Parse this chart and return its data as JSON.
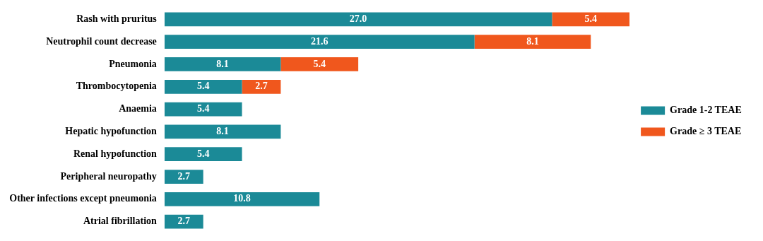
{
  "chart_data": {
    "type": "bar",
    "orientation": "horizontal",
    "stacked": true,
    "legend": "right",
    "categories": [
      "Rash with pruritus",
      "Neutrophil count decrease",
      "Pneumonia",
      "Thrombocytopenia",
      "Anaemia",
      "Hepatic hypofunction",
      "Renal hypofunction",
      "Peripheral neuropathy",
      "Other infections except pneumonia",
      "Atrial fibrillation"
    ],
    "series": [
      {
        "name": "Grade 1-2 TEAE",
        "color": "#1b8a97",
        "values": [
          27.0,
          21.6,
          8.1,
          5.4,
          5.4,
          8.1,
          5.4,
          2.7,
          10.8,
          2.7
        ],
        "value_labels": [
          "27.0",
          "21.6",
          "8.1",
          "5.4",
          "5.4",
          "8.1",
          "5.4",
          "2.7",
          "10.8",
          "2.7"
        ]
      },
      {
        "name": "Grade ≥ 3 TEAE",
        "color": "#f0571d",
        "values": [
          5.4,
          8.1,
          5.4,
          2.7,
          null,
          null,
          null,
          null,
          null,
          null
        ],
        "value_labels": [
          "5.4",
          "8.1",
          "5.4",
          "2.7",
          null,
          null,
          null,
          null,
          null,
          null
        ]
      }
    ]
  }
}
